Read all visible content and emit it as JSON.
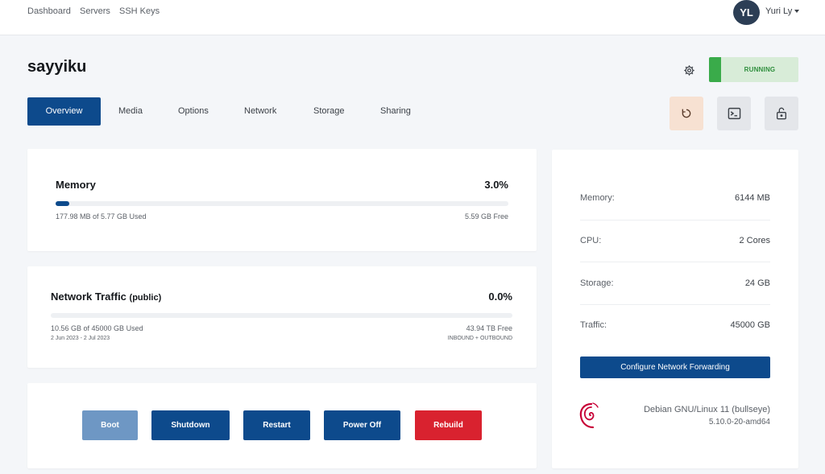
{
  "nav": {
    "links": [
      "Dashboard",
      "Servers",
      "SSH Keys"
    ],
    "user_initials": "YL",
    "user_name": "Yuri Ly"
  },
  "server": {
    "name": "sayyiku",
    "status": "RUNNING"
  },
  "tabs": [
    {
      "label": "Overview",
      "active": true
    },
    {
      "label": "Media",
      "active": false
    },
    {
      "label": "Options",
      "active": false
    },
    {
      "label": "Network",
      "active": false
    },
    {
      "label": "Storage",
      "active": false
    },
    {
      "label": "Sharing",
      "active": false
    }
  ],
  "quick_actions": {
    "reboot_icon": "reboot-icon",
    "console_icon": "console-icon",
    "lock_icon": "lock-icon"
  },
  "memory": {
    "title": "Memory",
    "percent_label": "3.0%",
    "percent_value": 3.0,
    "used": "177.98 MB of 5.77 GB Used",
    "free": "5.59 GB Free"
  },
  "traffic": {
    "title": "Network Traffic",
    "subtitle": "(public)",
    "percent_label": "0.0%",
    "percent_value": 0.0,
    "used": "10.56 GB of 45000 GB Used",
    "free": "43.94 TB Free",
    "period": "2 Jun 2023 - 2 Jul 2023",
    "direction": "INBOUND + OUTBOUND"
  },
  "actions": {
    "boot": "Boot",
    "shutdown": "Shutdown",
    "restart": "Restart",
    "power_off": "Power Off",
    "rebuild": "Rebuild"
  },
  "specs": [
    {
      "label": "Memory:",
      "value": "6144 MB"
    },
    {
      "label": "CPU:",
      "value": "2 Cores"
    },
    {
      "label": "Storage:",
      "value": "24 GB"
    },
    {
      "label": "Traffic:",
      "value": "45000 GB"
    }
  ],
  "configure_label": "Configure Network Forwarding",
  "os": {
    "name": "Debian GNU/Linux 11 (bullseye)",
    "kernel": "5.10.0-20-amd64",
    "icon": "debian-logo-icon"
  },
  "colors": {
    "primary": "#0d4a8c",
    "success": "#3aab4a",
    "danger": "#d9222f",
    "disabled": "#6e97c4"
  }
}
